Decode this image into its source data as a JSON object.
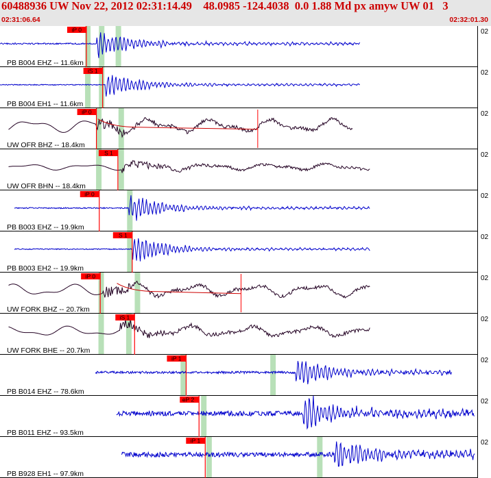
{
  "header": {
    "title": "60488936 UW Nov 22, 2012 02:31:14.49    48.0985 -124.4038  0.0 1.88 Md px amyw UW 01   3",
    "start_time": "02:31:06.64",
    "end_time": "02:32:01.30"
  },
  "colors": {
    "header_text": "#cc0000",
    "header_bg": "#e6e6e6",
    "short_period_trace": "#0000cc",
    "broadband_trace": "#220022",
    "pick_flag": "#ff0000",
    "pick_window": "#b8e0b8",
    "envelope_line": "#cc0000"
  },
  "traces": [
    {
      "label": "PB B004 EHZ -- 11.6km",
      "amp": "02",
      "pick": "iP 0",
      "kind": "sp",
      "data_start": 0,
      "data_end": 0.755,
      "pick_t": 0.181,
      "onset_t": 0.202,
      "noise": 0.035,
      "event_amp": 0.85,
      "coda": 0.09,
      "bands": [
        0.184,
        0.213,
        0.248
      ]
    },
    {
      "label": "PB B004 EH1 -- 11.6km",
      "amp": "02",
      "pick": "iS 1",
      "kind": "sp",
      "data_start": 0,
      "data_end": 0.755,
      "pick_t": 0.215,
      "onset_t": 0.22,
      "noise": 0.025,
      "event_amp": 0.8,
      "coda": 0.07,
      "bands": [
        0.184,
        0.213
      ]
    },
    {
      "label": "UW OFR BHZ -- 18.4km",
      "amp": "02",
      "pick": "iP 0",
      "kind": "bb",
      "data_start": 0.018,
      "data_end": 0.74,
      "pick_t": 0.202,
      "onset_t": 0.2,
      "noise": 0.38,
      "event_amp": 0.55,
      "coda": 0.3,
      "bands": [
        0.207,
        0.254
      ],
      "envelope": [
        0.205,
        0.54
      ],
      "mark_t": 0.54
    },
    {
      "label": "UW OFR BHN -- 18.4km",
      "amp": "02",
      "pick": "S 1",
      "kind": "bb",
      "data_start": 0.018,
      "data_end": 0.775,
      "pick_t": 0.247,
      "onset_t": 0.255,
      "noise": 0.18,
      "event_amp": 0.45,
      "coda": 0.22,
      "bands": [
        0.207,
        0.254
      ]
    },
    {
      "label": "PB B003 EHZ -- 19.9km",
      "amp": "02",
      "pick": "iP 0",
      "kind": "sp",
      "data_start": 0.03,
      "data_end": 0.775,
      "pick_t": 0.208,
      "onset_t": 0.27,
      "noise": 0.03,
      "event_amp": 0.8,
      "coda": 0.08,
      "bands": [
        0.272
      ]
    },
    {
      "label": "PB B003 EH2 -- 19.9km",
      "amp": "02",
      "pick": "S 1",
      "kind": "sp",
      "data_start": 0.03,
      "data_end": 0.775,
      "pick_t": 0.277,
      "onset_t": 0.277,
      "noise": 0.025,
      "event_amp": 0.85,
      "coda": 0.07,
      "bands": [
        0.272
      ]
    },
    {
      "label": "UW FORK BHZ -- 20.7km",
      "amp": "02",
      "pick": "iP 0",
      "kind": "bb",
      "data_start": 0.018,
      "data_end": 0.775,
      "pick_t": 0.21,
      "onset_t": 0.215,
      "noise": 0.35,
      "event_amp": 0.5,
      "coda": 0.28,
      "bands": [
        0.212,
        0.288
      ],
      "envelope": [
        0.245,
        0.505
      ],
      "mark_t": 0.505
    },
    {
      "label": "UW FORK BHE -- 20.7km",
      "amp": "02",
      "pick": "iS 1",
      "kind": "bb",
      "data_start": 0.018,
      "data_end": 0.775,
      "pick_t": 0.282,
      "onset_t": 0.25,
      "noise": 0.3,
      "event_amp": 0.48,
      "coda": 0.3,
      "bands": [
        0.212,
        0.27
      ]
    },
    {
      "label": "PB B014 EHZ -- 78.6km",
      "amp": "02",
      "pick": "iP 1",
      "kind": "sp",
      "data_start": 0.2,
      "data_end": 0.947,
      "pick_t": 0.39,
      "onset_t": 0.62,
      "noise": 0.06,
      "event_amp": 0.9,
      "coda": 0.12,
      "bands": [
        0.384,
        0.572
      ]
    },
    {
      "label": "PB B011 EHZ -- 93.5km",
      "amp": "02",
      "pick": "eP 2",
      "kind": "sp",
      "data_start": 0.244,
      "data_end": 0.995,
      "pick_t": 0.417,
      "onset_t": 0.635,
      "noise": 0.12,
      "event_amp": 0.9,
      "coda": 0.22,
      "bands": [
        0.427
      ]
    },
    {
      "label": "PB B928 EH1 -- 97.9km",
      "amp": "02",
      "pick": "iP 1",
      "kind": "sp",
      "data_start": 0.255,
      "data_end": 0.995,
      "pick_t": 0.43,
      "onset_t": 0.7,
      "noise": 0.12,
      "event_amp": 0.9,
      "coda": 0.2,
      "bands": [
        0.438,
        0.67
      ]
    }
  ]
}
